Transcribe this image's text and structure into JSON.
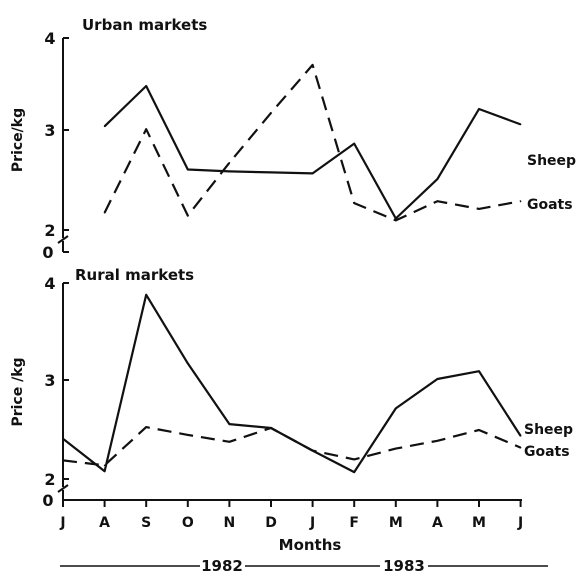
{
  "months": [
    "J",
    "A",
    "S",
    "O",
    "N",
    "D",
    "J",
    "F",
    "M",
    "A",
    "M",
    "J"
  ],
  "xlabel": "Months",
  "years": [
    "1982",
    "1983"
  ],
  "chart_data": [
    {
      "type": "line",
      "title": "Urban markets",
      "ylabel": "Price/kg",
      "ylim": [
        2,
        4
      ],
      "yticks": [
        "4",
        "3",
        "2"
      ],
      "zero_label": "0",
      "axis_break": true,
      "categories": [
        "J",
        "A",
        "S",
        "O",
        "N",
        "D",
        "J",
        "F",
        "M",
        "A",
        "M",
        "J"
      ],
      "series": [
        {
          "name": "Sheep",
          "dash": "solid",
          "values": [
            null,
            3.08,
            3.5,
            2.63,
            2.61,
            2.6,
            2.59,
            2.9,
            2.12,
            2.53,
            3.26,
            3.1
          ]
        },
        {
          "name": "Goats",
          "dash": "dashed",
          "values": [
            null,
            2.18,
            3.05,
            2.15,
            2.7,
            3.22,
            3.72,
            2.28,
            2.1,
            2.3,
            2.22,
            2.3
          ]
        }
      ]
    },
    {
      "type": "line",
      "title": "Rural markets",
      "ylabel": "Price /kg",
      "ylim": [
        2,
        4
      ],
      "yticks": [
        "4",
        "3",
        "2"
      ],
      "zero_label": "0",
      "axis_break": true,
      "categories": [
        "J",
        "A",
        "S",
        "O",
        "N",
        "D",
        "J",
        "F",
        "M",
        "A",
        "M",
        "J"
      ],
      "series": [
        {
          "name": "Sheep",
          "dash": "solid",
          "values": [
            2.41,
            2.08,
            3.88,
            3.18,
            2.56,
            2.52,
            2.29,
            2.07,
            2.72,
            3.02,
            3.1,
            2.44
          ]
        },
        {
          "name": "Goats",
          "dash": "dashed",
          "values": [
            2.19,
            2.14,
            2.53,
            2.45,
            2.38,
            2.52,
            2.29,
            2.2,
            2.31,
            2.39,
            2.5,
            2.32
          ]
        }
      ]
    }
  ]
}
